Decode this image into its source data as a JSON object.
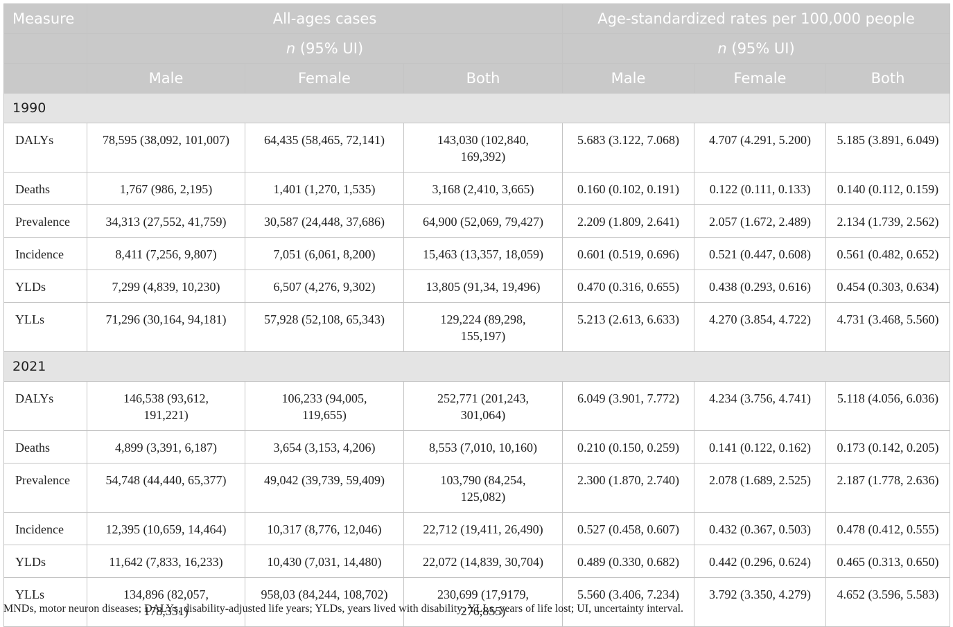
{
  "table": {
    "header": {
      "measure": "Measure",
      "groups": [
        "All-ages cases",
        "Age-standardized rates per 100,000 people"
      ],
      "units": [
        {
          "var": "n",
          "rest": "(95% UI)"
        },
        {
          "var": "n",
          "rest": "(95% UI)"
        }
      ],
      "columns": [
        "Male",
        "Female",
        "Both",
        "Male",
        "Female",
        "Both"
      ]
    },
    "sections": [
      {
        "year": "1990",
        "rows": [
          [
            "DALYs",
            "78,595 (38,092, 101,007)",
            "64,435 (58,465, 72,141)",
            "143,030 (102,840, 169,392)",
            "5.683 (3.122, 7.068)",
            "4.707 (4.291, 5.200)",
            "5.185 (3.891, 6.049)"
          ],
          [
            "Deaths",
            "1,767 (986, 2,195)",
            "1,401 (1,270, 1,535)",
            "3,168 (2,410, 3,665)",
            "0.160 (0.102, 0.191)",
            "0.122 (0.111, 0.133)",
            "0.140 (0.112, 0.159)"
          ],
          [
            "Prevalence",
            "34,313 (27,552, 41,759)",
            "30,587 (24,448, 37,686)",
            "64,900 (52,069, 79,427)",
            "2.209 (1.809, 2.641)",
            "2.057 (1.672, 2.489)",
            "2.134 (1.739, 2.562)"
          ],
          [
            "Incidence",
            "8,411 (7,256, 9,807)",
            "7,051 (6,061, 8,200)",
            "15,463 (13,357, 18,059)",
            "0.601 (0.519, 0.696)",
            "0.521 (0.447, 0.608)",
            "0.561 (0.482, 0.652)"
          ],
          [
            "YLDs",
            "7,299 (4,839, 10,230)",
            "6,507 (4,276, 9,302)",
            "13,805 (91,34, 19,496)",
            "0.470 (0.316, 0.655)",
            "0.438 (0.293, 0.616)",
            "0.454 (0.303, 0.634)"
          ],
          [
            "YLLs",
            "71,296 (30,164, 94,181)",
            "57,928 (52,108, 65,343)",
            "129,224 (89,298, 155,197)",
            "5.213 (2.613, 6.633)",
            "4.270 (3.854, 4.722)",
            "4.731 (3.468, 5.560)"
          ]
        ]
      },
      {
        "year": "2021",
        "rows": [
          [
            "DALYs",
            "146,538 (93,612, 191,221)",
            "106,233 (94,005, 119,655)",
            "252,771 (201,243, 301,064)",
            "6.049 (3.901, 7.772)",
            "4.234 (3.756, 4.741)",
            "5.118 (4.056, 6.036)"
          ],
          [
            "Deaths",
            "4,899 (3,391, 6,187)",
            "3,654 (3,153, 4,206)",
            "8,553 (7,010, 10,160)",
            "0.210 (0.150, 0.259)",
            "0.141 (0.122, 0.162)",
            "0.173 (0.142, 0.205)"
          ],
          [
            "Prevalence",
            "54,748 (44,440, 65,377)",
            "49,042 (39,739, 59,409)",
            "103,790 (84,254, 125,082)",
            "2.300 (1.870, 2.740)",
            "2.078 (1.689, 2.525)",
            "2.187 (1.778, 2.636)"
          ],
          [
            "Incidence",
            "12,395 (10,659, 14,464)",
            "10,317 (8,776, 12,046)",
            "22,712 (19,411, 26,490)",
            "0.527 (0.458, 0.607)",
            "0.432 (0.367, 0.503)",
            "0.478 (0.412, 0.555)"
          ],
          [
            "YLDs",
            "11,642 (7,833, 16,233)",
            "10,430 (7,031, 14,480)",
            "22,072 (14,839, 30,704)",
            "0.489 (0.330, 0.682)",
            "0.442 (0.296, 0.624)",
            "0.465 (0.313, 0.650)"
          ],
          [
            "YLLs",
            "134,896 (82,057, 178,351)",
            "958,03 (84,244, 108,702)",
            "230,699 (17,9179, 276,855)",
            "5.560 (3.406, 7.234)",
            "3.792 (3.350, 4.279)",
            "4.652 (3.596, 5.583)"
          ]
        ]
      }
    ],
    "footnote": "MNDs, motor neuron diseases; DALYs, disability-adjusted life years; YLDs, years lived with disability; YLLs, years of life lost; UI, uncertainty interval."
  }
}
